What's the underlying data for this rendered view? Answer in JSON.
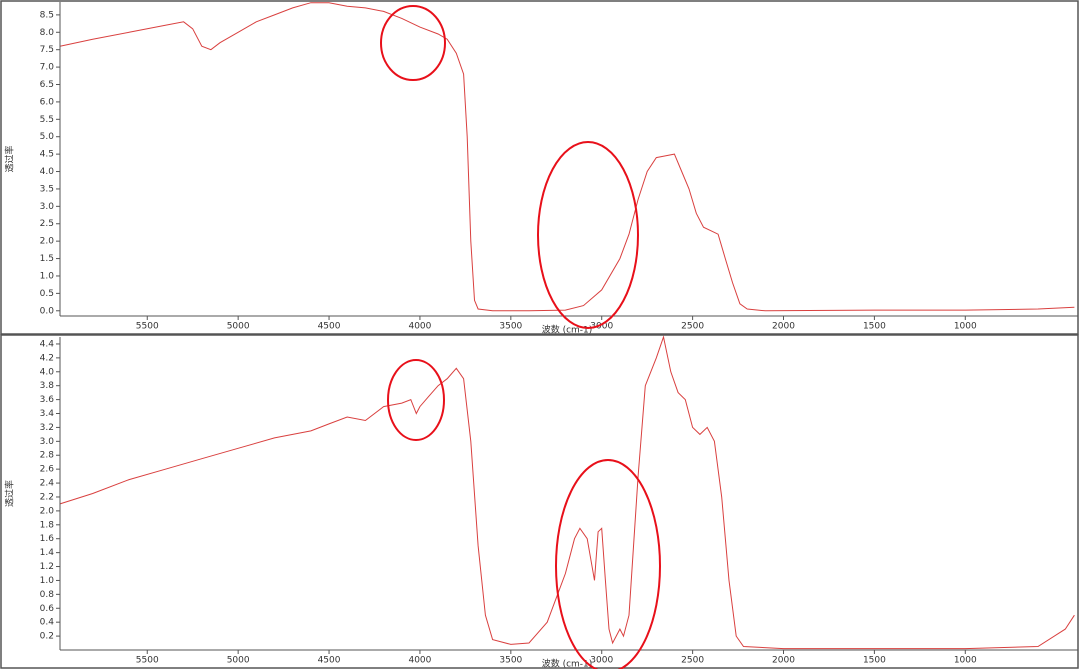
{
  "chart_data": [
    {
      "type": "line",
      "x_label": "波数 (cm-1)",
      "y_label": "透过率",
      "xlim": [
        5980,
        380
      ],
      "ylim": [
        -0.15,
        8.87
      ],
      "xticks": [
        5500,
        5000,
        4500,
        4000,
        3500,
        3000,
        2500,
        2000,
        1500,
        1000
      ],
      "yticks": [
        {
          "value": 0,
          "label": "0.0"
        },
        0.5,
        {
          "value": 1,
          "label": "1.0"
        },
        1.5,
        {
          "value": 2,
          "label": "2.0"
        },
        2.5,
        {
          "value": 3,
          "label": "3.0"
        },
        3.5,
        {
          "value": 4,
          "label": "4.0"
        },
        4.5,
        {
          "value": 5,
          "label": "5.0"
        },
        5.5,
        {
          "value": 6,
          "label": "6.0"
        },
        6.5,
        {
          "value": 7,
          "label": "7.0"
        },
        7.5,
        {
          "value": 8,
          "label": "8.0"
        },
        8.5
      ],
      "x": [
        5980,
        5800,
        5600,
        5400,
        5300,
        5250,
        5200,
        5150,
        5100,
        5000,
        4900,
        4800,
        4700,
        4600,
        4500,
        4400,
        4300,
        4200,
        4100,
        4000,
        3900,
        3850,
        3800,
        3760,
        3740,
        3720,
        3700,
        3680,
        3600,
        3400,
        3200,
        3100,
        3000,
        2900,
        2850,
        2800,
        2750,
        2700,
        2650,
        2600,
        2560,
        2520,
        2480,
        2440,
        2400,
        2360,
        2320,
        2280,
        2240,
        2200,
        2100,
        1500,
        1000,
        600,
        400
      ],
      "series": [
        {
          "color": "#d9403f",
          "values": [
            7.6,
            7.8,
            8.0,
            8.2,
            8.3,
            8.1,
            7.6,
            7.5,
            7.7,
            8.0,
            8.3,
            8.5,
            8.7,
            8.85,
            8.85,
            8.75,
            8.7,
            8.6,
            8.4,
            8.15,
            7.95,
            7.8,
            7.4,
            6.8,
            5.0,
            2.0,
            0.3,
            0.05,
            0.0,
            0.0,
            0.02,
            0.15,
            0.6,
            1.5,
            2.2,
            3.2,
            4.0,
            4.4,
            4.45,
            4.5,
            4.0,
            3.5,
            2.8,
            2.4,
            2.3,
            2.2,
            1.5,
            0.8,
            0.2,
            0.05,
            0.0,
            0.02,
            0.02,
            0.05,
            0.1
          ]
        }
      ]
    },
    {
      "type": "line",
      "x_label": "波数 (cm-1)",
      "y_label": "透过率",
      "xlim": [
        5980,
        380
      ],
      "ylim": [
        0,
        4.5
      ],
      "xticks": [
        5500,
        5000,
        4500,
        4000,
        3500,
        3000,
        2500,
        2000,
        1500,
        1000
      ],
      "yticks": [
        0.2,
        0.4,
        0.6,
        0.8,
        {
          "value": 1,
          "label": "1.0"
        },
        1.2,
        1.4,
        1.6,
        1.8,
        {
          "value": 2,
          "label": "2.0"
        },
        2.2,
        2.4,
        2.6,
        2.8,
        {
          "value": 3,
          "label": "3.0"
        },
        3.2,
        3.4,
        3.6,
        3.8,
        {
          "value": 4,
          "label": "4.0"
        },
        4.2,
        4.4
      ],
      "x": [
        5980,
        5800,
        5600,
        5400,
        5200,
        5000,
        4800,
        4600,
        4500,
        4400,
        4300,
        4200,
        4100,
        4050,
        4020,
        4000,
        3950,
        3900,
        3850,
        3800,
        3760,
        3720,
        3680,
        3640,
        3600,
        3500,
        3400,
        3300,
        3200,
        3150,
        3120,
        3080,
        3040,
        3020,
        3000,
        2980,
        2960,
        2940,
        2900,
        2880,
        2850,
        2800,
        2760,
        2700,
        2660,
        2620,
        2580,
        2540,
        2500,
        2460,
        2420,
        2380,
        2340,
        2300,
        2260,
        2220,
        2000,
        1000,
        600,
        450,
        400
      ],
      "series": [
        {
          "color": "#d9403f",
          "values": [
            2.1,
            2.25,
            2.45,
            2.6,
            2.75,
            2.9,
            3.05,
            3.15,
            3.25,
            3.35,
            3.3,
            3.5,
            3.55,
            3.6,
            3.4,
            3.5,
            3.65,
            3.8,
            3.9,
            4.05,
            3.9,
            3.0,
            1.5,
            0.5,
            0.15,
            0.08,
            0.1,
            0.4,
            1.1,
            1.6,
            1.75,
            1.6,
            1.0,
            1.7,
            1.75,
            1.0,
            0.3,
            0.1,
            0.3,
            0.2,
            0.5,
            2.5,
            3.8,
            4.2,
            4.5,
            4.0,
            3.7,
            3.6,
            3.2,
            3.1,
            3.2,
            3.0,
            2.2,
            1.0,
            0.2,
            0.05,
            0.02,
            0.02,
            0.05,
            0.3,
            0.5
          ]
        }
      ]
    }
  ]
}
